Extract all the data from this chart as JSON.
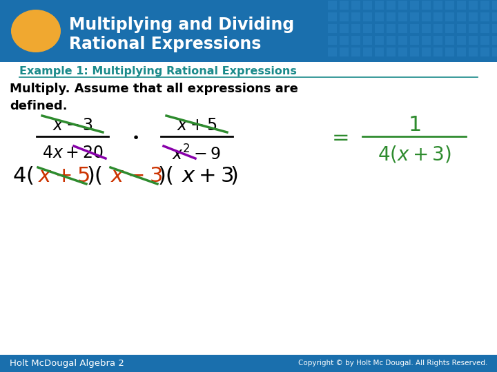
{
  "title_line1": "Multiplying and Dividing",
  "title_line2": "Rational Expressions",
  "header_bg_color": "#1a6fad",
  "header_text_color": "#ffffff",
  "oval_color": "#f0a830",
  "example_label": "Example 1: Multiplying Rational Expressions",
  "example_label_color": "#1a8a8a",
  "body_bg_color": "#ffffff",
  "footer_bg_color": "#1a6fad",
  "footer_left": "Holt McDougal Algebra 2",
  "footer_right": "Copyright © by Holt Mc Dougal. All Rights Reserved.",
  "footer_text_color": "#ffffff",
  "green_color": "#2e8b2e",
  "red_color": "#cc3300",
  "purple_color": "#8800aa",
  "black_color": "#000000",
  "grid_color": "#2a80c0"
}
